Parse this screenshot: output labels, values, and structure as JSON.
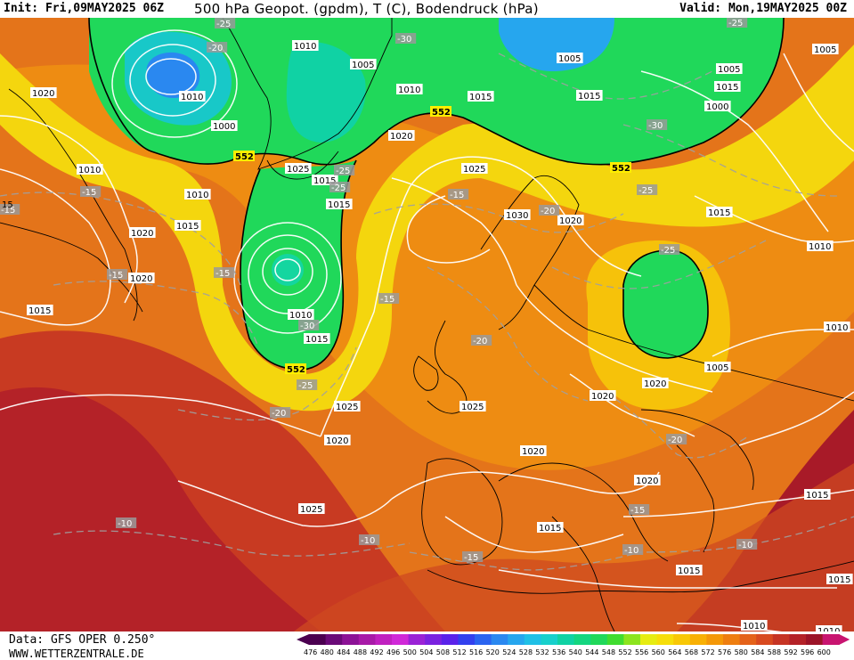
{
  "header": {
    "init": "Init: Fri,09MAY2025 06Z",
    "title": "500 hPa Geopot. (gpdm), T (C), Bodendruck (hPa)",
    "valid": "Valid: Mon,19MAY2025 00Z"
  },
  "footer": {
    "source": "Data: GFS OPER 0.250°",
    "website": "WWW.WETTERZENTRALE.DE"
  },
  "colorbar": {
    "ticks": [
      "476",
      "480",
      "484",
      "488",
      "492",
      "496",
      "500",
      "504",
      "508",
      "512",
      "516",
      "520",
      "524",
      "528",
      "532",
      "536",
      "540",
      "544",
      "548",
      "552",
      "556",
      "560",
      "564",
      "568",
      "572",
      "576",
      "580",
      "584",
      "588",
      "592",
      "596",
      "600"
    ],
    "colors": [
      "#4b0050",
      "#6a0a78",
      "#8c1296",
      "#a81aa8",
      "#c020c0",
      "#d028d8",
      "#9a22d6",
      "#7a22e0",
      "#5a22ea",
      "#3240ee",
      "#2a64f0",
      "#2a88f0",
      "#26a6ee",
      "#20c0e6",
      "#18d0cc",
      "#10d2a4",
      "#14d680",
      "#20d85a",
      "#40dc30",
      "#8ce41e",
      "#e6ec12",
      "#f6de0a",
      "#f8c806",
      "#f8b004",
      "#f49808",
      "#ee7e10",
      "#e4621a",
      "#d84a20",
      "#c63424",
      "#b42228",
      "#9c1428",
      "#c81470"
    ]
  },
  "map": {
    "fields": {
      "low_geopotential_color": "#20d85a",
      "high_geopotential_color": "#b42228",
      "isobar_color": "#ffffff",
      "isotherm_color": "#9a9a9a",
      "contour_552_color": "#000000"
    },
    "pressure_labels": [
      "1010",
      "1005",
      "1010",
      "1000",
      "1005",
      "1020",
      "1010",
      "1015",
      "1005",
      "1015",
      "1000",
      "1005",
      "1010",
      "1015",
      "1020",
      "1025",
      "1015",
      "1015",
      "1030",
      "1020",
      "1010",
      "1020",
      "1015",
      "1015",
      "1025",
      "1010",
      "1015",
      "1020",
      "1015",
      "1010",
      "1025",
      "1020",
      "1025",
      "1020",
      "1020",
      "1020",
      "1025",
      "1015",
      "1015",
      "1015",
      "1010",
      "1010",
      "1005",
      "1020",
      "1010",
      "1015"
    ],
    "temperature_labels": [
      "-25",
      "-20",
      "-30",
      "-25",
      "-30",
      "-25",
      "-25",
      "-15",
      "-20",
      "-25",
      "-15",
      "-15",
      "-25",
      "-15",
      "-30",
      "-25",
      "-20",
      "-20",
      "-15",
      "-20",
      "-10",
      "-10",
      "-15",
      "-15",
      "-10",
      "-10",
      "-15"
    ],
    "contour_552_labels": [
      "552",
      "552",
      "552",
      "552"
    ],
    "corner_label": "15"
  }
}
